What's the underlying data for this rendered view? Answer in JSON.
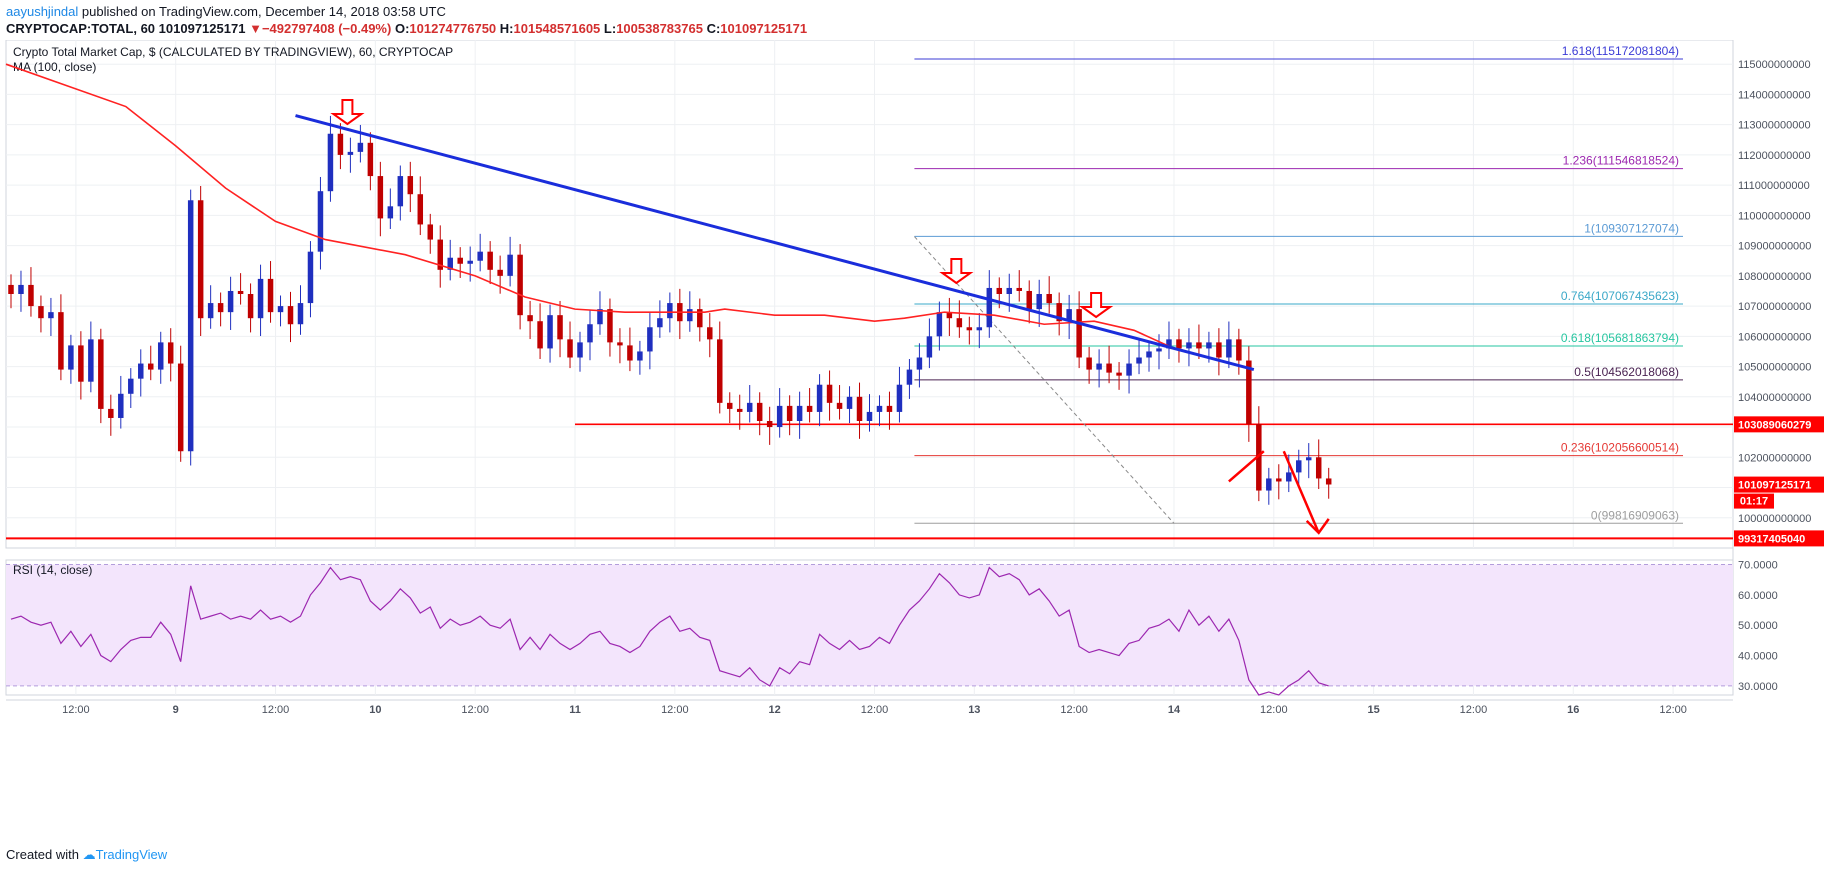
{
  "header": {
    "user": "aayushjindal",
    "published_text": "published on TradingView.com, December 14, 2018 03:58 UTC",
    "symbol": "CRYPTOCAP:TOTAL, 60",
    "last": "101097125171",
    "arrow": "▼",
    "change": "−492797408 (−0.49%)",
    "o_label": "O:",
    "open": "101274776750",
    "h_label": "H:",
    "high": "101548571605",
    "l_label": "L:",
    "low": "100538783765",
    "c_label": "C:",
    "close": "101097125171"
  },
  "footer": {
    "created_with": "Created with",
    "brand": "TradingView"
  },
  "colors": {
    "up": "#1f2fbf",
    "down": "#c00000",
    "ma": "#ff2222",
    "trendline": "#1a2ddb",
    "support": "#ff0000",
    "rsi": "#9c27b0",
    "rsi_band": "#f3e5fc",
    "annotation": "#ff0000"
  },
  "chart_data": [
    {
      "type": "candlestick",
      "title": "Crypto Total Market Cap, $ (CALCULATED BY TRADINGVIEW), 60, CRYPTOCAP",
      "indicator_label": "MA (100, close)",
      "ylim": [
        99000000000,
        115800000000
      ],
      "y_ticks": [
        100000000000,
        101000000000,
        102000000000,
        103000000000,
        104000000000,
        105000000000,
        106000000000,
        107000000000,
        108000000000,
        109000000000,
        110000000000,
        111000000000,
        112000000000,
        113000000000,
        114000000000,
        115000000000
      ],
      "y_tick_labels": [
        "100000000000",
        "101000000000",
        "102000000000",
        "103000000000",
        "104000000000",
        "105000000000",
        "106000000000",
        "107000000000",
        "108000000000",
        "109000000000",
        "110000000000",
        "111000000000",
        "112000000000",
        "113000000000",
        "114000000000",
        "115000000000"
      ],
      "x_range_hours": [
        0,
        173
      ],
      "x_ticks": [
        {
          "hour": 7,
          "label": "12:00"
        },
        {
          "hour": 17,
          "label": "9",
          "bold": true
        },
        {
          "hour": 27,
          "label": "12:00"
        },
        {
          "hour": 37,
          "label": "10",
          "bold": true
        },
        {
          "hour": 47,
          "label": "12:00"
        },
        {
          "hour": 57,
          "label": "11",
          "bold": true
        },
        {
          "hour": 67,
          "label": "12:00"
        },
        {
          "hour": 77,
          "label": "12",
          "bold": true
        },
        {
          "hour": 87,
          "label": "12:00"
        },
        {
          "hour": 97,
          "label": "13",
          "bold": true
        },
        {
          "hour": 107,
          "label": "12:00"
        },
        {
          "hour": 117,
          "label": "14",
          "bold": true
        },
        {
          "hour": 127,
          "label": "12:00"
        },
        {
          "hour": 137,
          "label": "15",
          "bold": true
        },
        {
          "hour": 147,
          "label": "12:00"
        },
        {
          "hour": 157,
          "label": "16",
          "bold": true
        },
        {
          "hour": 167,
          "label": "12:00"
        }
      ],
      "closes": [
        107400000000,
        107700000000,
        107000000000,
        106600000000,
        106800000000,
        104900000000,
        105700000000,
        104500000000,
        105900000000,
        103600000000,
        103300000000,
        104100000000,
        104600000000,
        105100000000,
        104900000000,
        105800000000,
        105100000000,
        102200000000,
        110500000000,
        106600000000,
        107100000000,
        106800000000,
        107500000000,
        107400000000,
        106600000000,
        107900000000,
        106800000000,
        107000000000,
        106400000000,
        107100000000,
        108800000000,
        110800000000,
        112700000000,
        112000000000,
        112100000000,
        112400000000,
        111300000000,
        109900000000,
        110300000000,
        111300000000,
        110700000000,
        109700000000,
        109200000000,
        108200000000,
        108600000000,
        108400000000,
        108500000000,
        108800000000,
        108200000000,
        108000000000,
        108700000000,
        106700000000,
        106500000000,
        105600000000,
        106700000000,
        105900000000,
        105300000000,
        105800000000,
        106400000000,
        106900000000,
        105800000000,
        105700000000,
        105200000000,
        105500000000,
        106300000000,
        106600000000,
        107100000000,
        106500000000,
        106900000000,
        106300000000,
        105900000000,
        103800000000,
        103600000000,
        103500000000,
        103800000000,
        103200000000,
        103000000000,
        103700000000,
        103200000000,
        103700000000,
        103500000000,
        104400000000,
        103800000000,
        103600000000,
        104000000000,
        103200000000,
        103500000000,
        103700000000,
        103500000000,
        104400000000,
        104900000000,
        105300000000,
        106000000000,
        106800000000,
        106600000000,
        106300000000,
        106200000000,
        106300000000,
        107600000000,
        107400000000,
        107600000000,
        107500000000,
        106900000000,
        107400000000,
        107100000000,
        106500000000,
        106900000000,
        105300000000,
        104900000000,
        105100000000,
        104800000000,
        104700000000,
        105100000000,
        105300000000,
        105500000000,
        105600000000,
        105900000000,
        105600000000,
        105800000000,
        105600000000,
        105800000000,
        105300000000,
        105900000000,
        105200000000,
        103100000000,
        100900000000,
        101300000000,
        101200000000,
        101500000000,
        101900000000,
        102000000000,
        101300000000,
        101100000000
      ],
      "ma_100": [
        {
          "hour": 0,
          "value": 115000000000
        },
        {
          "hour": 6,
          "value": 114300000000
        },
        {
          "hour": 12,
          "value": 113600000000
        },
        {
          "hour": 17,
          "value": 112300000000
        },
        {
          "hour": 22,
          "value": 110900000000
        },
        {
          "hour": 27,
          "value": 109800000000
        },
        {
          "hour": 32,
          "value": 109200000000
        },
        {
          "hour": 40,
          "value": 108700000000
        },
        {
          "hour": 47,
          "value": 108000000000
        },
        {
          "hour": 52,
          "value": 107300000000
        },
        {
          "hour": 57,
          "value": 106900000000
        },
        {
          "hour": 62,
          "value": 106800000000
        },
        {
          "hour": 70,
          "value": 106800000000
        },
        {
          "hour": 72,
          "value": 106900000000
        },
        {
          "hour": 77,
          "value": 106700000000
        },
        {
          "hour": 82,
          "value": 106700000000
        },
        {
          "hour": 87,
          "value": 106500000000
        },
        {
          "hour": 90,
          "value": 106600000000
        },
        {
          "hour": 94,
          "value": 106800000000
        },
        {
          "hour": 99,
          "value": 106700000000
        },
        {
          "hour": 104,
          "value": 106400000000
        },
        {
          "hour": 109,
          "value": 106500000000
        },
        {
          "hour": 113,
          "value": 106200000000
        },
        {
          "hour": 117,
          "value": 105600000000
        }
      ],
      "fibonacci": [
        {
          "ratio": "1.618",
          "value": 115172081804,
          "label": "1.618(115172081804)",
          "color": "#3b3bd6"
        },
        {
          "ratio": "1.236",
          "value": 111546818524,
          "label": "1.236(111546818524)",
          "color": "#9c27b0"
        },
        {
          "ratio": "1",
          "value": 109307127074,
          "label": "1(109307127074)",
          "color": "#5b9bd5"
        },
        {
          "ratio": "0.764",
          "value": 107067435623,
          "label": "0.764(107067435623)",
          "color": "#3aa8c8"
        },
        {
          "ratio": "0.618",
          "value": 105681863794,
          "label": "0.618(105681863794)",
          "color": "#26c6a0"
        },
        {
          "ratio": "0.5",
          "value": 104562018068,
          "label": "0.5(104562018068)",
          "color": "#4a2352"
        },
        {
          "ratio": "0.236",
          "value": 102056600514,
          "label": "0.236(102056600514)",
          "color": "#e53935"
        },
        {
          "ratio": "0",
          "value": 99816909063,
          "label": "0(99816909063)",
          "color": "#9e9e9e"
        }
      ],
      "price_labels": [
        {
          "value": 103089060279,
          "text": "103089060279"
        },
        {
          "value": 101097125171,
          "text": "101097125171"
        },
        {
          "value": 99317405040,
          "text": "99317405040"
        }
      ],
      "countdown": "01:17",
      "support_level_upper": 103089060279,
      "support_level_lower": 99317405040,
      "trendline": [
        {
          "hour": 29,
          "value": 113300000000
        },
        {
          "hour": 125,
          "value": 104900000000
        }
      ],
      "retracement_line": [
        {
          "hour": 91,
          "value": 109300000000
        },
        {
          "hour": 117,
          "value": 99816909063
        }
      ]
    },
    {
      "type": "line",
      "title": "RSI (14, close)",
      "ylim": [
        27,
        71.5
      ],
      "y_ticks": [
        30,
        40,
        50,
        60,
        70
      ],
      "y_tick_labels": [
        "30.0000",
        "40.0000",
        "50.0000",
        "60.0000",
        "70.0000"
      ],
      "band": [
        30,
        70
      ],
      "values": [
        52,
        53,
        51,
        50,
        51,
        44,
        48,
        43,
        47,
        40,
        38,
        42,
        45,
        46,
        46,
        51,
        47,
        38,
        63,
        52,
        53,
        54,
        52,
        53,
        52,
        55,
        52,
        53,
        51,
        53,
        60,
        64,
        69,
        65,
        66,
        65,
        58,
        55,
        58,
        62,
        59,
        54,
        56,
        49,
        52,
        50,
        51,
        53,
        50,
        49,
        52,
        42,
        46,
        42,
        47,
        44,
        42,
        44,
        47,
        48,
        44,
        43,
        41,
        43,
        48,
        51,
        53,
        48,
        49,
        46,
        45,
        35,
        34,
        33,
        36,
        32,
        30,
        36,
        34,
        38,
        37,
        47,
        44,
        42,
        45,
        42,
        43,
        46,
        44,
        50,
        55,
        58,
        62,
        67,
        64,
        60,
        59,
        60,
        69,
        66,
        67,
        65,
        60,
        62,
        58,
        53,
        55,
        43,
        41,
        42,
        41,
        40,
        44,
        45,
        49,
        50,
        52,
        48,
        55,
        50,
        53,
        48,
        52,
        45,
        32,
        27,
        28,
        27,
        30,
        32,
        35,
        31,
        30
      ]
    }
  ]
}
